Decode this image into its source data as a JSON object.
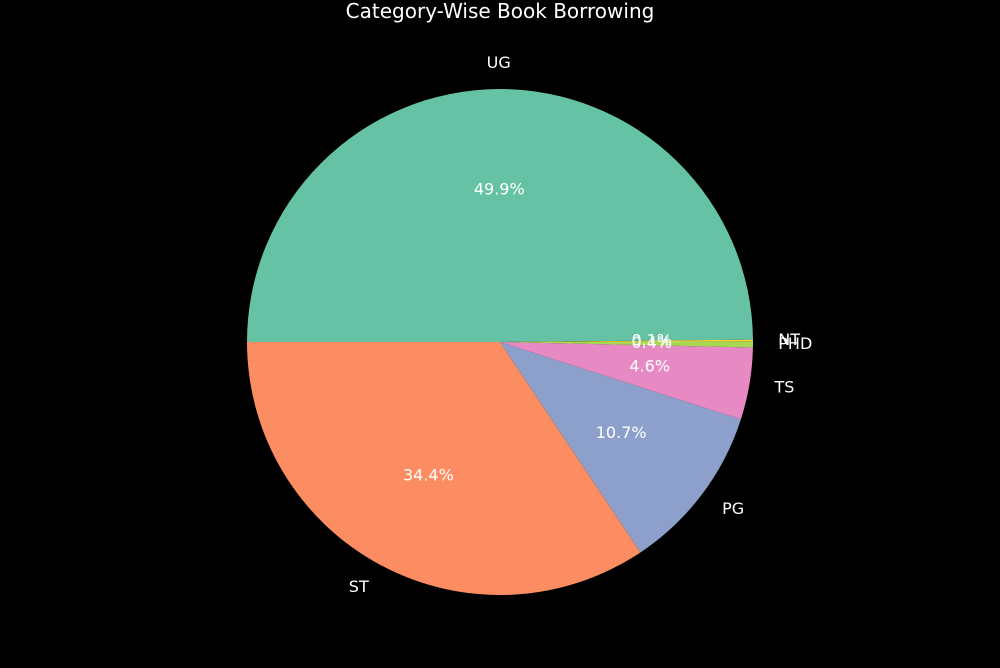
{
  "chart_data": {
    "type": "pie",
    "title": "Category-Wise Book Borrowing",
    "start_angle_deg": 180,
    "direction": "counterclockwise",
    "slices": [
      {
        "label": "ST",
        "value": 34.4,
        "pct_label": "34.4%",
        "color": "#fc8d62"
      },
      {
        "label": "PG",
        "value": 10.7,
        "pct_label": "10.7%",
        "color": "#8da0cb"
      },
      {
        "label": "TS",
        "value": 4.6,
        "pct_label": "4.6%",
        "color": "#e78ac3"
      },
      {
        "label": "PHD",
        "value": 0.4,
        "pct_label": "0.4%",
        "color": "#a6d854"
      },
      {
        "label": "NT",
        "value": 0.1,
        "pct_label": "0.1%",
        "color": "#ffd92f"
      },
      {
        "label": "UG",
        "value": 49.9,
        "pct_label": "49.9%",
        "color": "#66c2a5"
      }
    ]
  }
}
